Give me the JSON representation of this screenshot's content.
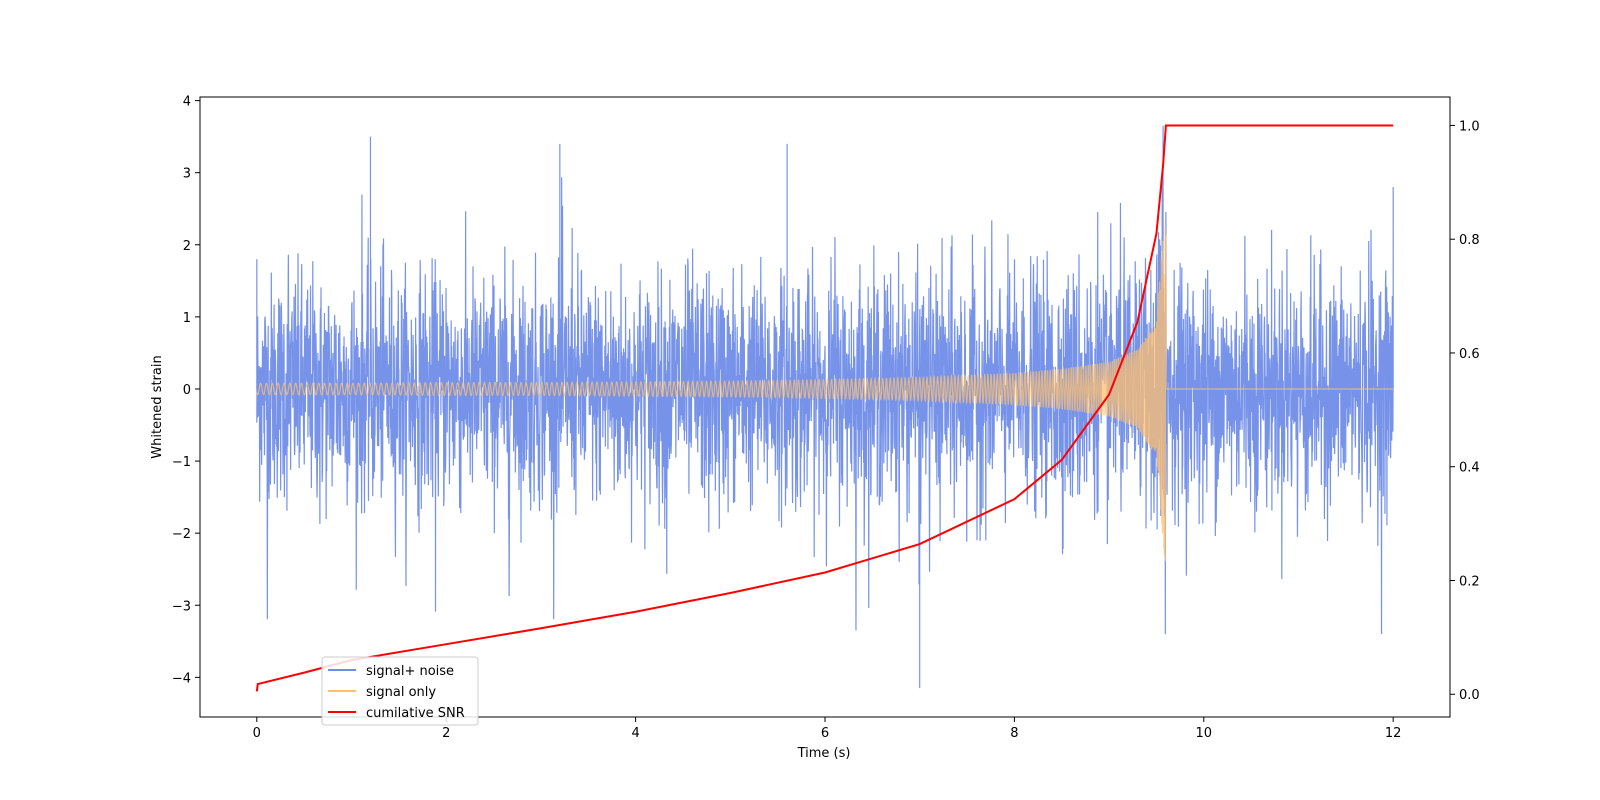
{
  "chart_data": {
    "type": "line",
    "title": "",
    "xlabel": "Time (s)",
    "ylabel": "Whitened strain",
    "ylabel_right": "",
    "xlim": [
      -0.6,
      12.6
    ],
    "ylim": [
      -4.55,
      4.05
    ],
    "ylim_right": [
      -0.04,
      1.05
    ],
    "x_ticks": [
      0,
      2,
      4,
      6,
      8,
      10,
      12
    ],
    "x_tick_labels": [
      "0",
      "2",
      "4",
      "6",
      "8",
      "10",
      "12"
    ],
    "y_ticks": [
      4,
      3,
      2,
      1,
      0,
      -1,
      -2,
      -3,
      -4
    ],
    "y_tick_labels": [
      "4",
      "3",
      "2",
      "1",
      "0",
      "−1",
      "−2",
      "−3",
      "−4"
    ],
    "y_right_ticks": [
      1.0,
      0.8,
      0.6,
      0.4,
      0.2,
      0.0
    ],
    "y_right_tick_labels": [
      "1.0",
      "0.8",
      "0.6",
      "0.4",
      "0.2",
      "0.0"
    ],
    "grid": false,
    "legend_position": "lower-left",
    "series": [
      {
        "name": "signal+ noise",
        "axis": "left",
        "color": "#6f8de8",
        "description_points": {
          "x": [
            0,
            1.2,
            3.2,
            5.6,
            7.0,
            9.57,
            12.0
          ],
          "y": [
            1.8,
            3.5,
            3.4,
            3.4,
            -4.15,
            3.65,
            2.8
          ]
        },
        "x_range": [
          0,
          12
        ],
        "typical_amplitude": [
          -2.5,
          2.7
        ]
      },
      {
        "name": "signal only",
        "axis": "left",
        "color": "#ffbf6e",
        "x": [
          0,
          1,
          2,
          3,
          4,
          5,
          6,
          7,
          8,
          8.5,
          9.0,
          9.3,
          9.5,
          9.6,
          9.61,
          12.0
        ],
        "envelope": [
          0.08,
          0.08,
          0.09,
          0.09,
          0.1,
          0.11,
          0.13,
          0.16,
          0.22,
          0.28,
          0.38,
          0.55,
          0.95,
          2.6,
          0.0,
          0.0
        ]
      },
      {
        "name": "cumilative SNR",
        "axis": "right",
        "color": "#ff0000",
        "x": [
          0,
          0.01,
          0.5,
          1,
          2,
          3,
          4,
          5,
          6,
          7,
          8,
          8.5,
          9.0,
          9.3,
          9.5,
          9.57,
          9.6,
          12.0
        ],
        "y": [
          0.005,
          0.018,
          0.038,
          0.06,
          0.088,
          0.116,
          0.145,
          0.178,
          0.214,
          0.264,
          0.343,
          0.412,
          0.527,
          0.655,
          0.81,
          0.93,
          1.0,
          1.0
        ]
      }
    ]
  }
}
